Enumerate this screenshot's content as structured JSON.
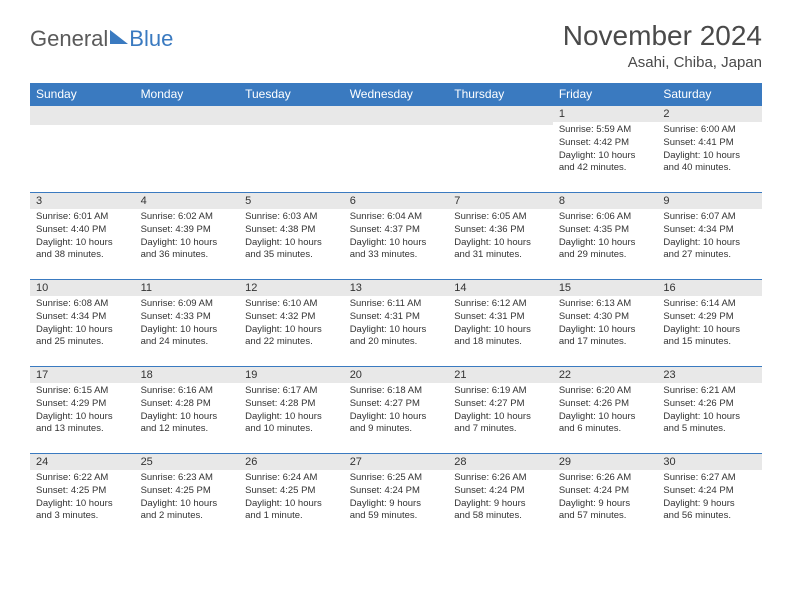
{
  "logo": {
    "text1": "General",
    "text2": "Blue"
  },
  "title": "November 2024",
  "location": "Asahi, Chiba, Japan",
  "colors": {
    "accent": "#3a7ac0",
    "header_text": "#ffffff",
    "daynum_bg": "#e8e8e8",
    "text": "#333333",
    "title_text": "#4a4a4a",
    "border": "#3a7ac0"
  },
  "weekdays": [
    "Sunday",
    "Monday",
    "Tuesday",
    "Wednesday",
    "Thursday",
    "Friday",
    "Saturday"
  ],
  "weeks": [
    [
      {
        "day": "",
        "lines": [
          "",
          "",
          "",
          ""
        ]
      },
      {
        "day": "",
        "lines": [
          "",
          "",
          "",
          ""
        ]
      },
      {
        "day": "",
        "lines": [
          "",
          "",
          "",
          ""
        ]
      },
      {
        "day": "",
        "lines": [
          "",
          "",
          "",
          ""
        ]
      },
      {
        "day": "",
        "lines": [
          "",
          "",
          "",
          ""
        ]
      },
      {
        "day": "1",
        "lines": [
          "Sunrise: 5:59 AM",
          "Sunset: 4:42 PM",
          "Daylight: 10 hours",
          "and 42 minutes."
        ]
      },
      {
        "day": "2",
        "lines": [
          "Sunrise: 6:00 AM",
          "Sunset: 4:41 PM",
          "Daylight: 10 hours",
          "and 40 minutes."
        ]
      }
    ],
    [
      {
        "day": "3",
        "lines": [
          "Sunrise: 6:01 AM",
          "Sunset: 4:40 PM",
          "Daylight: 10 hours",
          "and 38 minutes."
        ]
      },
      {
        "day": "4",
        "lines": [
          "Sunrise: 6:02 AM",
          "Sunset: 4:39 PM",
          "Daylight: 10 hours",
          "and 36 minutes."
        ]
      },
      {
        "day": "5",
        "lines": [
          "Sunrise: 6:03 AM",
          "Sunset: 4:38 PM",
          "Daylight: 10 hours",
          "and 35 minutes."
        ]
      },
      {
        "day": "6",
        "lines": [
          "Sunrise: 6:04 AM",
          "Sunset: 4:37 PM",
          "Daylight: 10 hours",
          "and 33 minutes."
        ]
      },
      {
        "day": "7",
        "lines": [
          "Sunrise: 6:05 AM",
          "Sunset: 4:36 PM",
          "Daylight: 10 hours",
          "and 31 minutes."
        ]
      },
      {
        "day": "8",
        "lines": [
          "Sunrise: 6:06 AM",
          "Sunset: 4:35 PM",
          "Daylight: 10 hours",
          "and 29 minutes."
        ]
      },
      {
        "day": "9",
        "lines": [
          "Sunrise: 6:07 AM",
          "Sunset: 4:34 PM",
          "Daylight: 10 hours",
          "and 27 minutes."
        ]
      }
    ],
    [
      {
        "day": "10",
        "lines": [
          "Sunrise: 6:08 AM",
          "Sunset: 4:34 PM",
          "Daylight: 10 hours",
          "and 25 minutes."
        ]
      },
      {
        "day": "11",
        "lines": [
          "Sunrise: 6:09 AM",
          "Sunset: 4:33 PM",
          "Daylight: 10 hours",
          "and 24 minutes."
        ]
      },
      {
        "day": "12",
        "lines": [
          "Sunrise: 6:10 AM",
          "Sunset: 4:32 PM",
          "Daylight: 10 hours",
          "and 22 minutes."
        ]
      },
      {
        "day": "13",
        "lines": [
          "Sunrise: 6:11 AM",
          "Sunset: 4:31 PM",
          "Daylight: 10 hours",
          "and 20 minutes."
        ]
      },
      {
        "day": "14",
        "lines": [
          "Sunrise: 6:12 AM",
          "Sunset: 4:31 PM",
          "Daylight: 10 hours",
          "and 18 minutes."
        ]
      },
      {
        "day": "15",
        "lines": [
          "Sunrise: 6:13 AM",
          "Sunset: 4:30 PM",
          "Daylight: 10 hours",
          "and 17 minutes."
        ]
      },
      {
        "day": "16",
        "lines": [
          "Sunrise: 6:14 AM",
          "Sunset: 4:29 PM",
          "Daylight: 10 hours",
          "and 15 minutes."
        ]
      }
    ],
    [
      {
        "day": "17",
        "lines": [
          "Sunrise: 6:15 AM",
          "Sunset: 4:29 PM",
          "Daylight: 10 hours",
          "and 13 minutes."
        ]
      },
      {
        "day": "18",
        "lines": [
          "Sunrise: 6:16 AM",
          "Sunset: 4:28 PM",
          "Daylight: 10 hours",
          "and 12 minutes."
        ]
      },
      {
        "day": "19",
        "lines": [
          "Sunrise: 6:17 AM",
          "Sunset: 4:28 PM",
          "Daylight: 10 hours",
          "and 10 minutes."
        ]
      },
      {
        "day": "20",
        "lines": [
          "Sunrise: 6:18 AM",
          "Sunset: 4:27 PM",
          "Daylight: 10 hours",
          "and 9 minutes."
        ]
      },
      {
        "day": "21",
        "lines": [
          "Sunrise: 6:19 AM",
          "Sunset: 4:27 PM",
          "Daylight: 10 hours",
          "and 7 minutes."
        ]
      },
      {
        "day": "22",
        "lines": [
          "Sunrise: 6:20 AM",
          "Sunset: 4:26 PM",
          "Daylight: 10 hours",
          "and 6 minutes."
        ]
      },
      {
        "day": "23",
        "lines": [
          "Sunrise: 6:21 AM",
          "Sunset: 4:26 PM",
          "Daylight: 10 hours",
          "and 5 minutes."
        ]
      }
    ],
    [
      {
        "day": "24",
        "lines": [
          "Sunrise: 6:22 AM",
          "Sunset: 4:25 PM",
          "Daylight: 10 hours",
          "and 3 minutes."
        ]
      },
      {
        "day": "25",
        "lines": [
          "Sunrise: 6:23 AM",
          "Sunset: 4:25 PM",
          "Daylight: 10 hours",
          "and 2 minutes."
        ]
      },
      {
        "day": "26",
        "lines": [
          "Sunrise: 6:24 AM",
          "Sunset: 4:25 PM",
          "Daylight: 10 hours",
          "and 1 minute."
        ]
      },
      {
        "day": "27",
        "lines": [
          "Sunrise: 6:25 AM",
          "Sunset: 4:24 PM",
          "Daylight: 9 hours",
          "and 59 minutes."
        ]
      },
      {
        "day": "28",
        "lines": [
          "Sunrise: 6:26 AM",
          "Sunset: 4:24 PM",
          "Daylight: 9 hours",
          "and 58 minutes."
        ]
      },
      {
        "day": "29",
        "lines": [
          "Sunrise: 6:26 AM",
          "Sunset: 4:24 PM",
          "Daylight: 9 hours",
          "and 57 minutes."
        ]
      },
      {
        "day": "30",
        "lines": [
          "Sunrise: 6:27 AM",
          "Sunset: 4:24 PM",
          "Daylight: 9 hours",
          "and 56 minutes."
        ]
      }
    ]
  ]
}
